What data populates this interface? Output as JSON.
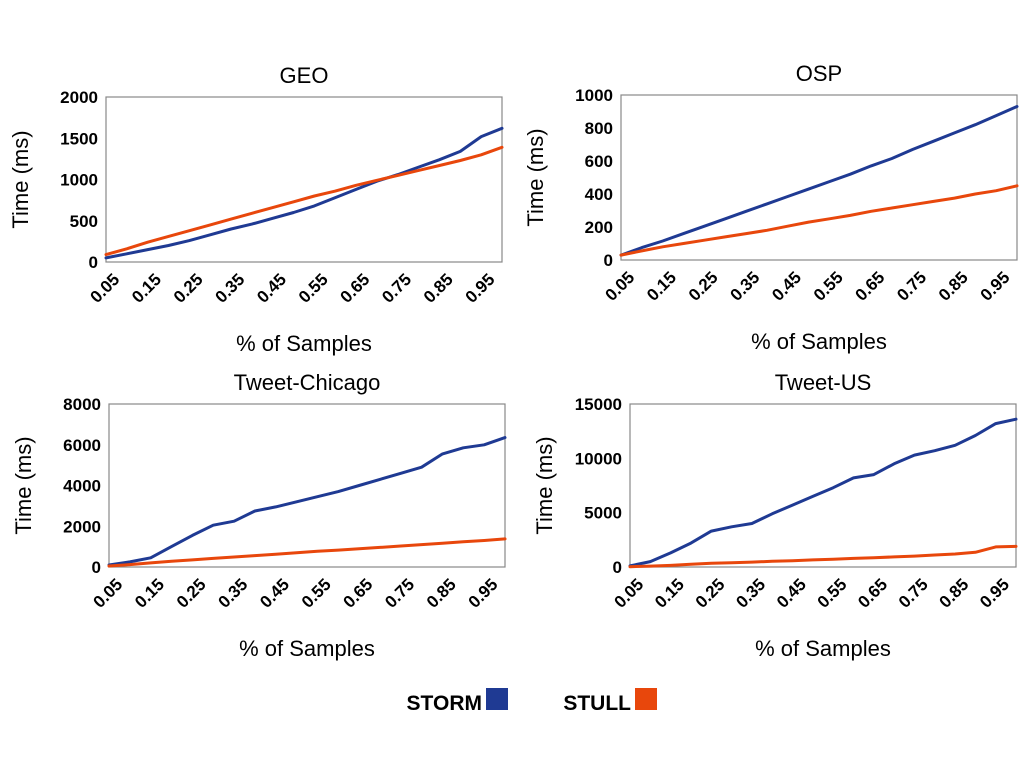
{
  "colors": {
    "storm": "#1f3a93",
    "stull": "#e8470c"
  },
  "legend": [
    {
      "label": "STORM",
      "color": "#1f3a93"
    },
    {
      "label": "STULL",
      "color": "#e8470c"
    }
  ],
  "chart_data": [
    {
      "type": "line",
      "title": "GEO",
      "xlabel": "% of Samples",
      "ylabel": "Time (ms)",
      "ylim": [
        0,
        2000
      ],
      "yticks": [
        0,
        500,
        1000,
        1500,
        2000
      ],
      "xlim": [
        0.05,
        1.0
      ],
      "xticks": [
        "0.05",
        "0.15",
        "0.25",
        "0.35",
        "0.45",
        "0.55",
        "0.65",
        "0.75",
        "0.85",
        "0.95"
      ],
      "grid": false,
      "series": [
        {
          "name": "STORM",
          "color": "#1f3a93",
          "x": [
            0.05,
            0.1,
            0.15,
            0.2,
            0.25,
            0.3,
            0.35,
            0.4,
            0.45,
            0.5,
            0.55,
            0.6,
            0.65,
            0.7,
            0.75,
            0.8,
            0.85,
            0.9,
            0.95,
            1.0
          ],
          "y": [
            50,
            100,
            150,
            200,
            260,
            330,
            400,
            460,
            530,
            600,
            680,
            780,
            880,
            980,
            1060,
            1150,
            1240,
            1340,
            1520,
            1620
          ]
        },
        {
          "name": "STULL",
          "color": "#e8470c",
          "x": [
            0.05,
            0.1,
            0.15,
            0.2,
            0.25,
            0.3,
            0.35,
            0.4,
            0.45,
            0.5,
            0.55,
            0.6,
            0.65,
            0.7,
            0.75,
            0.8,
            0.85,
            0.9,
            0.95,
            1.0
          ],
          "y": [
            90,
            160,
            240,
            310,
            380,
            450,
            520,
            590,
            660,
            730,
            800,
            860,
            930,
            990,
            1050,
            1110,
            1170,
            1230,
            1300,
            1390
          ]
        }
      ]
    },
    {
      "type": "line",
      "title": "OSP",
      "xlabel": "% of Samples",
      "ylabel": "Time (ms)",
      "ylim": [
        0,
        1000
      ],
      "yticks": [
        0,
        200,
        400,
        600,
        800,
        1000
      ],
      "xlim": [
        0.05,
        1.0
      ],
      "xticks": [
        "0.05",
        "0.15",
        "0.25",
        "0.35",
        "0.45",
        "0.55",
        "0.65",
        "0.75",
        "0.85",
        "0.95"
      ],
      "grid": false,
      "series": [
        {
          "name": "STORM",
          "color": "#1f3a93",
          "x": [
            0.05,
            0.1,
            0.15,
            0.2,
            0.25,
            0.3,
            0.35,
            0.4,
            0.45,
            0.5,
            0.55,
            0.6,
            0.65,
            0.7,
            0.75,
            0.8,
            0.85,
            0.9,
            0.95,
            1.0
          ],
          "y": [
            30,
            75,
            115,
            160,
            205,
            250,
            295,
            340,
            385,
            430,
            475,
            520,
            570,
            615,
            670,
            720,
            770,
            820,
            875,
            930
          ]
        },
        {
          "name": "STULL",
          "color": "#e8470c",
          "x": [
            0.05,
            0.1,
            0.15,
            0.2,
            0.25,
            0.3,
            0.35,
            0.4,
            0.45,
            0.5,
            0.55,
            0.6,
            0.65,
            0.7,
            0.75,
            0.8,
            0.85,
            0.9,
            0.95,
            1.0
          ],
          "y": [
            30,
            55,
            80,
            100,
            120,
            140,
            160,
            180,
            205,
            230,
            250,
            270,
            295,
            315,
            335,
            355,
            375,
            400,
            420,
            450
          ]
        }
      ]
    },
    {
      "type": "line",
      "title": "Tweet-Chicago",
      "xlabel": "% of Samples",
      "ylabel": "Time (ms)",
      "ylim": [
        0,
        8000
      ],
      "yticks": [
        0,
        2000,
        4000,
        6000,
        8000
      ],
      "xlim": [
        0.05,
        1.0
      ],
      "xticks": [
        "0.05",
        "0.15",
        "0.25",
        "0.35",
        "0.45",
        "0.55",
        "0.65",
        "0.75",
        "0.85",
        "0.95"
      ],
      "grid": false,
      "series": [
        {
          "name": "STORM",
          "color": "#1f3a93",
          "x": [
            0.05,
            0.1,
            0.15,
            0.2,
            0.25,
            0.3,
            0.35,
            0.4,
            0.45,
            0.5,
            0.55,
            0.6,
            0.65,
            0.7,
            0.75,
            0.8,
            0.85,
            0.9,
            0.95,
            1.0
          ],
          "y": [
            100,
            250,
            450,
            1000,
            1550,
            2050,
            2250,
            2750,
            2950,
            3200,
            3450,
            3700,
            4000,
            4300,
            4600,
            4900,
            5550,
            5850,
            6000,
            6350
          ]
        },
        {
          "name": "STULL",
          "color": "#e8470c",
          "x": [
            0.05,
            0.1,
            0.15,
            0.2,
            0.25,
            0.3,
            0.35,
            0.4,
            0.45,
            0.5,
            0.55,
            0.6,
            0.65,
            0.7,
            0.75,
            0.8,
            0.85,
            0.9,
            0.95,
            1.0
          ],
          "y": [
            50,
            120,
            200,
            280,
            350,
            420,
            490,
            560,
            630,
            700,
            770,
            830,
            900,
            960,
            1030,
            1100,
            1170,
            1240,
            1300,
            1380
          ]
        }
      ]
    },
    {
      "type": "line",
      "title": "Tweet-US",
      "xlabel": "% of Samples",
      "ylabel": "Time (ms)",
      "ylim": [
        0,
        15000
      ],
      "yticks": [
        0,
        5000,
        10000,
        15000
      ],
      "xlim": [
        0.05,
        1.0
      ],
      "xticks": [
        "0.05",
        "0.15",
        "0.25",
        "0.35",
        "0.45",
        "0.55",
        "0.65",
        "0.75",
        "0.85",
        "0.95"
      ],
      "grid": false,
      "series": [
        {
          "name": "STORM",
          "color": "#1f3a93",
          "x": [
            0.05,
            0.1,
            0.15,
            0.2,
            0.25,
            0.3,
            0.35,
            0.4,
            0.45,
            0.5,
            0.55,
            0.6,
            0.65,
            0.7,
            0.75,
            0.8,
            0.85,
            0.9,
            0.95,
            1.0
          ],
          "y": [
            100,
            500,
            1300,
            2200,
            3300,
            3700,
            4000,
            4900,
            5700,
            6500,
            7300,
            8200,
            8500,
            9500,
            10300,
            10700,
            11200,
            12100,
            13200,
            13600
          ]
        },
        {
          "name": "STULL",
          "color": "#e8470c",
          "x": [
            0.05,
            0.1,
            0.15,
            0.2,
            0.25,
            0.3,
            0.35,
            0.4,
            0.45,
            0.5,
            0.55,
            0.6,
            0.65,
            0.7,
            0.75,
            0.8,
            0.85,
            0.9,
            0.95,
            1.0
          ],
          "y": [
            30,
            80,
            150,
            250,
            350,
            400,
            450,
            520,
            580,
            650,
            720,
            790,
            860,
            930,
            1000,
            1100,
            1200,
            1350,
            1850,
            1900
          ]
        }
      ]
    }
  ]
}
